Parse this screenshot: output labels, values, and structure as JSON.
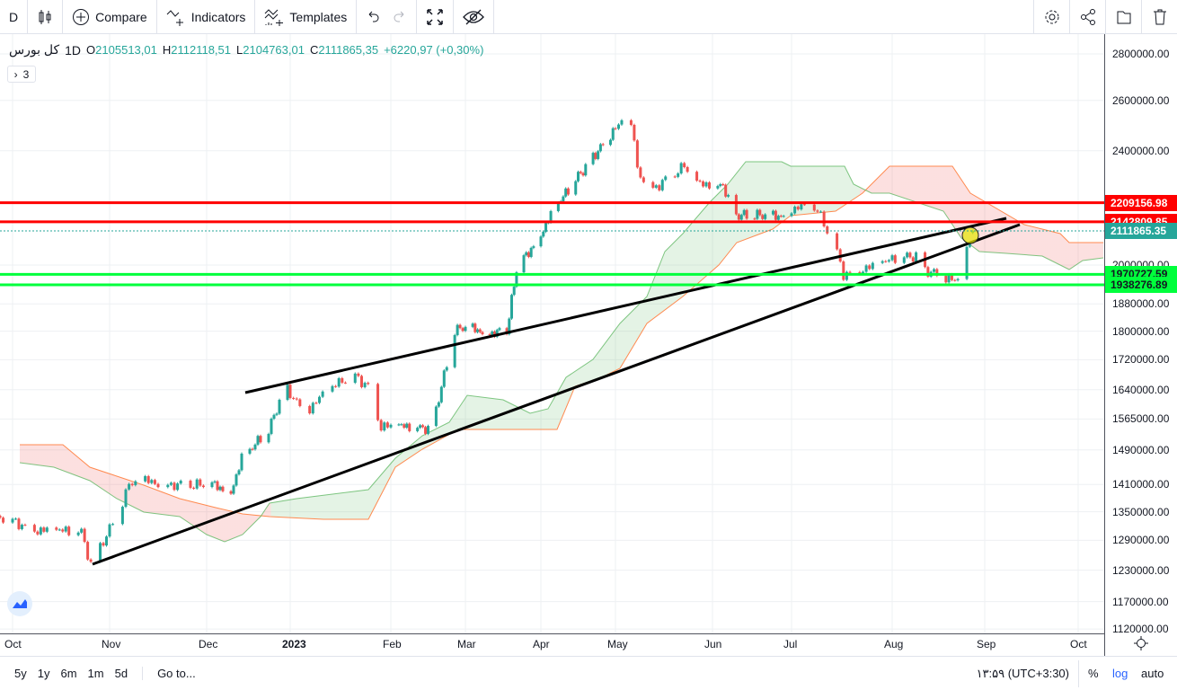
{
  "toolbar": {
    "interval": "D",
    "compare": "Compare",
    "indicators": "Indicators",
    "templates": "Templates"
  },
  "legend": {
    "symbol": "کل بورس",
    "interval": "1D",
    "open_label": "O",
    "open": "2105513,01",
    "high_label": "H",
    "high": "2112118,51",
    "low_label": "L",
    "low": "2104763,01",
    "close_label": "C",
    "close": "2111865,35",
    "change": "+6220,97 (+0,30%)",
    "indicators_count": "3"
  },
  "price_axis": {
    "ticks": [
      "2800000.00",
      "2600000.00",
      "2400000.00",
      "2000000.00",
      "1880000.00",
      "1800000.00",
      "1720000.00",
      "1640000.00",
      "1565000.00",
      "1490000.00",
      "1410000.00",
      "1350000.00",
      "1290000.00",
      "1230000.00",
      "1170000.00",
      "1120000.00"
    ]
  },
  "price_levels": [
    {
      "value": 2209156.98,
      "label": "2209156.98",
      "color": "#ff0000"
    },
    {
      "value": 2142809.85,
      "label": "2142809.85",
      "color": "#ff0000"
    },
    {
      "value": 2111865.35,
      "label": "2111865.35",
      "color": "#26a69a",
      "last": true
    },
    {
      "value": 1970727.59,
      "label": "1970727.59",
      "color": "#00ff3c"
    },
    {
      "value": 1938276.89,
      "label": "1938276.89",
      "color": "#00ff3c"
    }
  ],
  "time_axis": {
    "ticks": [
      "Oct",
      "Nov",
      "Dec",
      "2023",
      "Feb",
      "Mar",
      "Apr",
      "May",
      "Jun",
      "Jul",
      "Aug",
      "Sep",
      "Oct"
    ]
  },
  "price_path": [
    [
      -4,
      1339000
    ],
    [
      8,
      1311000
    ],
    [
      22,
      1308000
    ],
    [
      25,
      1242000
    ],
    [
      33,
      1339000
    ],
    [
      37,
      1408000
    ],
    [
      42,
      1418000
    ],
    [
      53,
      1408000
    ],
    [
      64,
      1408000
    ],
    [
      70,
      1393000
    ],
    [
      74,
      1471000
    ],
    [
      84,
      1535000
    ],
    [
      90,
      1649000
    ],
    [
      97,
      1584000
    ],
    [
      102,
      1625000
    ],
    [
      111,
      1684000
    ],
    [
      116,
      1649000
    ],
    [
      120,
      1546000
    ],
    [
      125,
      1546000
    ],
    [
      135,
      1546000
    ],
    [
      138,
      1535000
    ],
    [
      142,
      1649000
    ],
    [
      145,
      1733000
    ],
    [
      147,
      1802000
    ],
    [
      152,
      1810000
    ],
    [
      161,
      1796000
    ],
    [
      168,
      1796000
    ],
    [
      172,
      1986000
    ],
    [
      181,
      2088000
    ],
    [
      187,
      2180000
    ],
    [
      196,
      2292000
    ],
    [
      207,
      2427000
    ],
    [
      216,
      2533000
    ],
    [
      218,
      2444000
    ],
    [
      219,
      2324000
    ],
    [
      224,
      2259000
    ],
    [
      234,
      2341000
    ],
    [
      237,
      2275000
    ],
    [
      247,
      2275000
    ],
    [
      251,
      2164000
    ],
    [
      269,
      2164000
    ],
    [
      275,
      2195000
    ],
    [
      281,
      2180000
    ],
    [
      286,
      2073000
    ],
    [
      289,
      1972000
    ],
    [
      300,
      2000000
    ],
    [
      306,
      2029000
    ],
    [
      312,
      2029000
    ],
    [
      315,
      1986000
    ],
    [
      324,
      1952000
    ],
    [
      327,
      1952000
    ],
    [
      328,
      2014000
    ],
    [
      331,
      2111865
    ]
  ],
  "bottom": {
    "ranges": [
      "5y",
      "1y",
      "6m",
      "1m",
      "5d"
    ],
    "goto": "Go to...",
    "clock": "۱۳:۵۹ (UTC+3:30)",
    "percent": "%",
    "log": "log",
    "auto": "auto"
  },
  "colors": {
    "up": "#26a69a",
    "down": "#ef5350",
    "accent": "#2962ff"
  }
}
